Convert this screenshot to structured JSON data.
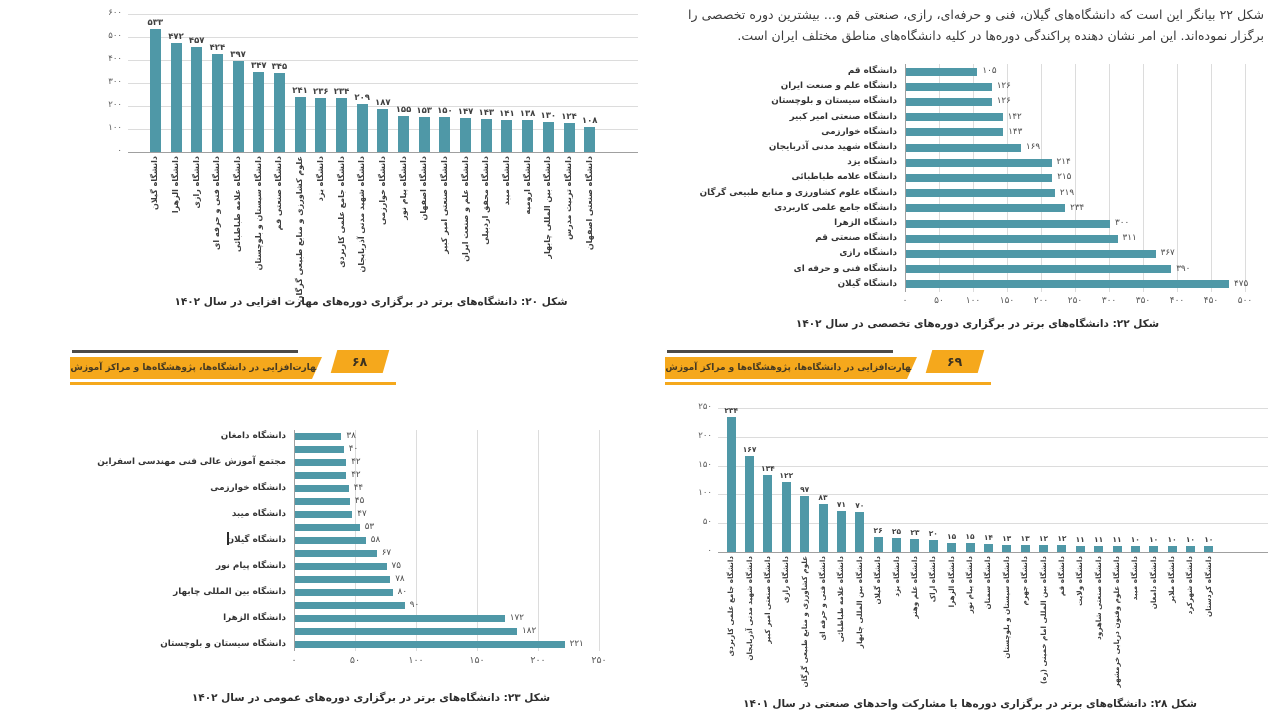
{
  "texts": {
    "intro": "شکل ۲۲ بیانگر این است که دانشگاه‌های گیلان، فنی و حرفه‌ای، رازی، صنعتی قم و... بیشترین دوره تخصصی را برگزار نموده‌اند. این امر نشان دهنده پراکندگی دوره‌ها در کلیه دانشگاه‌های مناطق مختلف ایران است."
  },
  "banner": {
    "text": "مهارت‌افزایی در دانشگاه‌ها، پژوهشگاه‌ها و مراکز آموزش عالی کشور",
    "left_page_number": "۶۸",
    "right_page_number": "۶۹"
  },
  "colors": {
    "bar_teal": "#4f98a7",
    "banner_amber": "#f5a81c",
    "gridline": "#dcdcdc",
    "axis": "#a0a0a0"
  },
  "chart_data": [
    {
      "id": "fig20",
      "type": "bar",
      "orientation": "vertical",
      "caption": "شکل ۲۰: دانشگاه‌های برتر در برگزاری دوره‌های مهارت افزایی در سال ۱۴۰۲",
      "categories": [
        "دانشگاه گیلان",
        "دانشگاه الزهرا",
        "دانشگاه رازی",
        "دانشگاه فنی و حرفه ای",
        "دانشگاه علامه طباطبائی",
        "دانشگاه سیستان و بلوچستان",
        "دانشگاه صنعتی قم",
        "علوم کشاورزی و منابع طبیعی گرگان",
        "دانشگاه یزد",
        "دانشگاه جامع علمی کاربردی",
        "دانشگاه شهید مدنی آذربایجان",
        "دانشگاه خوارزمی",
        "دانشگاه پیام نور",
        "دانشگاه اصفهان",
        "دانشگاه صنعتی امیر کبیر",
        "دانشگاه علم و صنعت ایران",
        "دانشگاه محقق اردبیلی",
        "دانشگاه میبد",
        "دانشگاه ارومیه",
        "دانشگاه بین المللی چابهار",
        "دانشگاه تربیت مدرس",
        "دانشگاه صنعتی اصفهان"
      ],
      "values": [
        533,
        472,
        457,
        424,
        397,
        347,
        345,
        241,
        236,
        234,
        209,
        187,
        155,
        153,
        150,
        147,
        143,
        141,
        138,
        130,
        124,
        108
      ],
      "ylim": [
        0,
        600
      ],
      "tick_step": 100,
      "grid": true,
      "value_labels": true
    },
    {
      "id": "fig22",
      "type": "bar",
      "orientation": "horizontal",
      "caption": "شکل ۲۲: دانشگاه‌های برتر در برگزاری دوره‌های تخصصی در سال ۱۴۰۲",
      "categories": [
        "دانشگاه قم",
        "دانشگاه علم و صنعت ایران",
        "دانشگاه سیستان و بلوچستان",
        "دانشگاه صنعتی امیر کبیر",
        "دانشگاه خوارزمی",
        "دانشگاه شهید مدنی آذربایجان",
        "دانشگاه یزد",
        "دانشگاه علامه طباطبائی",
        "دانشگاه علوم کشاورزی و منابع طبیعی گرگان",
        "دانشگاه جامع علمی کاربردی",
        "دانشگاه الزهرا",
        "دانشگاه صنعتی قم",
        "دانشگاه رازی",
        "دانشگاه فنی و حرفه ای",
        "دانشگاه گیلان"
      ],
      "values": [
        105,
        126,
        126,
        142,
        143,
        169,
        214,
        215,
        219,
        234,
        300,
        311,
        367,
        390,
        475
      ],
      "xlim": [
        0,
        500
      ],
      "tick_step": 50,
      "grid": true,
      "value_labels": true
    },
    {
      "id": "fig23",
      "type": "bar",
      "orientation": "horizontal",
      "caption": "شکل ۲۳: دانشگاه‌های برتر در برگزاری دوره‌های عمومی در سال ۱۴۰۲",
      "categories": [
        "دانشگاه دامغان",
        "",
        "مجتمع آموزش عالی فنی مهندسی اسفراین",
        "",
        "دانشگاه خوارزمی",
        "",
        "دانشگاه میبد",
        "",
        "دانشگاه گیلان",
        "",
        "دانشگاه پیام نور",
        "",
        "دانشگاه بین المللی چابهار",
        "",
        "دانشگاه الزهرا",
        "",
        "دانشگاه سیستان و بلوچستان"
      ],
      "values": [
        38,
        40,
        42,
        42,
        44,
        45,
        47,
        53,
        58,
        67,
        75,
        78,
        80,
        90,
        172,
        182,
        221
      ],
      "xlim": [
        0,
        250
      ],
      "tick_step": 50,
      "grid": true,
      "value_labels": true
    },
    {
      "id": "fig28",
      "type": "bar",
      "orientation": "vertical",
      "caption": "شکل ۲۸: دانشگاه‌های برتر در برگزاری دوره‌ها با مشارکت واحدهای صنعتی در سال ۱۴۰۱",
      "categories": [
        "دانشگاه جامع علمی کاربردی",
        "دانشگاه شهید مدنی آذربایجان",
        "دانشگاه صنعتی امیر کبیر",
        "دانشگاه رازی",
        "علوم کشاورزی و منابع طبیعی گرگان",
        "دانشگاه فنی و حرفه ای",
        "دانشگاه علامه طباطبائی",
        "دانشگاه بین المللی چابهار",
        "دانشگاه گیلان",
        "دانشگاه یزد",
        "دانشگاه علم وهنر",
        "دانشگاه اراک",
        "دانشگاه الزهرا",
        "دانشگاه پیام نور",
        "دانشگاه سمنان",
        "دانشگاه سیستان و بلوچستان",
        "دانشگاه جهرم",
        "دانشگاه بین المللی امام خمینی (ره)",
        "دانشگاه قم",
        "دانشگاه ولایت",
        "دانشگاه صنعتی شاهرود",
        "دانشگاه علوم وفنون دریایی خرمشهر",
        "دانشگاه میبد",
        "دانشگاه دامغان",
        "دانشگاه ملایر",
        "دانشگاه شهرکرد",
        "دانشگاه کردستان"
      ],
      "values": [
        234,
        167,
        134,
        122,
        97,
        83,
        71,
        70,
        26,
        25,
        23,
        20,
        15,
        15,
        14,
        13,
        13,
        12,
        12,
        11,
        11,
        11,
        10,
        10,
        10,
        10,
        10
      ],
      "ylim": [
        0,
        250
      ],
      "tick_step": 50,
      "grid": true,
      "value_labels": true
    }
  ]
}
